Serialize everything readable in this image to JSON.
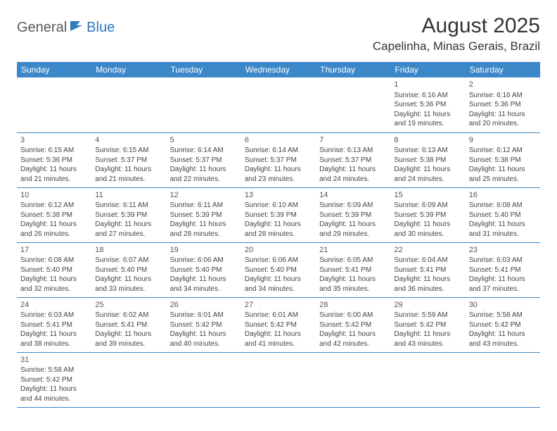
{
  "logo": {
    "part1": "General",
    "part2": "Blue"
  },
  "title": "August 2025",
  "location": "Capelinha, Minas Gerais, Brazil",
  "colors": {
    "header_bg": "#3b87c8",
    "header_text": "#ffffff",
    "cell_border": "#3b87c8",
    "body_text": "#444444",
    "logo_gray": "#5a5a5a",
    "logo_blue": "#2f7bbf"
  },
  "weekdays": [
    "Sunday",
    "Monday",
    "Tuesday",
    "Wednesday",
    "Thursday",
    "Friday",
    "Saturday"
  ],
  "weeks": [
    [
      null,
      null,
      null,
      null,
      null,
      {
        "day": "1",
        "sunrise": "6:16 AM",
        "sunset": "5:36 PM",
        "daylight": "11 hours and 19 minutes."
      },
      {
        "day": "2",
        "sunrise": "6:16 AM",
        "sunset": "5:36 PM",
        "daylight": "11 hours and 20 minutes."
      }
    ],
    [
      {
        "day": "3",
        "sunrise": "6:15 AM",
        "sunset": "5:36 PM",
        "daylight": "11 hours and 21 minutes."
      },
      {
        "day": "4",
        "sunrise": "6:15 AM",
        "sunset": "5:37 PM",
        "daylight": "11 hours and 21 minutes."
      },
      {
        "day": "5",
        "sunrise": "6:14 AM",
        "sunset": "5:37 PM",
        "daylight": "11 hours and 22 minutes."
      },
      {
        "day": "6",
        "sunrise": "6:14 AM",
        "sunset": "5:37 PM",
        "daylight": "11 hours and 23 minutes."
      },
      {
        "day": "7",
        "sunrise": "6:13 AM",
        "sunset": "5:37 PM",
        "daylight": "11 hours and 24 minutes."
      },
      {
        "day": "8",
        "sunrise": "6:13 AM",
        "sunset": "5:38 PM",
        "daylight": "11 hours and 24 minutes."
      },
      {
        "day": "9",
        "sunrise": "6:12 AM",
        "sunset": "5:38 PM",
        "daylight": "11 hours and 25 minutes."
      }
    ],
    [
      {
        "day": "10",
        "sunrise": "6:12 AM",
        "sunset": "5:38 PM",
        "daylight": "11 hours and 26 minutes."
      },
      {
        "day": "11",
        "sunrise": "6:11 AM",
        "sunset": "5:39 PM",
        "daylight": "11 hours and 27 minutes."
      },
      {
        "day": "12",
        "sunrise": "6:11 AM",
        "sunset": "5:39 PM",
        "daylight": "11 hours and 28 minutes."
      },
      {
        "day": "13",
        "sunrise": "6:10 AM",
        "sunset": "5:39 PM",
        "daylight": "11 hours and 28 minutes."
      },
      {
        "day": "14",
        "sunrise": "6:09 AM",
        "sunset": "5:39 PM",
        "daylight": "11 hours and 29 minutes."
      },
      {
        "day": "15",
        "sunrise": "6:09 AM",
        "sunset": "5:39 PM",
        "daylight": "11 hours and 30 minutes."
      },
      {
        "day": "16",
        "sunrise": "6:08 AM",
        "sunset": "5:40 PM",
        "daylight": "11 hours and 31 minutes."
      }
    ],
    [
      {
        "day": "17",
        "sunrise": "6:08 AM",
        "sunset": "5:40 PM",
        "daylight": "11 hours and 32 minutes."
      },
      {
        "day": "18",
        "sunrise": "6:07 AM",
        "sunset": "5:40 PM",
        "daylight": "11 hours and 33 minutes."
      },
      {
        "day": "19",
        "sunrise": "6:06 AM",
        "sunset": "5:40 PM",
        "daylight": "11 hours and 34 minutes."
      },
      {
        "day": "20",
        "sunrise": "6:06 AM",
        "sunset": "5:40 PM",
        "daylight": "11 hours and 34 minutes."
      },
      {
        "day": "21",
        "sunrise": "6:05 AM",
        "sunset": "5:41 PM",
        "daylight": "11 hours and 35 minutes."
      },
      {
        "day": "22",
        "sunrise": "6:04 AM",
        "sunset": "5:41 PM",
        "daylight": "11 hours and 36 minutes."
      },
      {
        "day": "23",
        "sunrise": "6:03 AM",
        "sunset": "5:41 PM",
        "daylight": "11 hours and 37 minutes."
      }
    ],
    [
      {
        "day": "24",
        "sunrise": "6:03 AM",
        "sunset": "5:41 PM",
        "daylight": "11 hours and 38 minutes."
      },
      {
        "day": "25",
        "sunrise": "6:02 AM",
        "sunset": "5:41 PM",
        "daylight": "11 hours and 39 minutes."
      },
      {
        "day": "26",
        "sunrise": "6:01 AM",
        "sunset": "5:42 PM",
        "daylight": "11 hours and 40 minutes."
      },
      {
        "day": "27",
        "sunrise": "6:01 AM",
        "sunset": "5:42 PM",
        "daylight": "11 hours and 41 minutes."
      },
      {
        "day": "28",
        "sunrise": "6:00 AM",
        "sunset": "5:42 PM",
        "daylight": "11 hours and 42 minutes."
      },
      {
        "day": "29",
        "sunrise": "5:59 AM",
        "sunset": "5:42 PM",
        "daylight": "11 hours and 43 minutes."
      },
      {
        "day": "30",
        "sunrise": "5:58 AM",
        "sunset": "5:42 PM",
        "daylight": "11 hours and 43 minutes."
      }
    ],
    [
      {
        "day": "31",
        "sunrise": "5:58 AM",
        "sunset": "5:42 PM",
        "daylight": "11 hours and 44 minutes."
      },
      null,
      null,
      null,
      null,
      null,
      null
    ]
  ],
  "labels": {
    "sunrise": "Sunrise:",
    "sunset": "Sunset:",
    "daylight": "Daylight:"
  }
}
